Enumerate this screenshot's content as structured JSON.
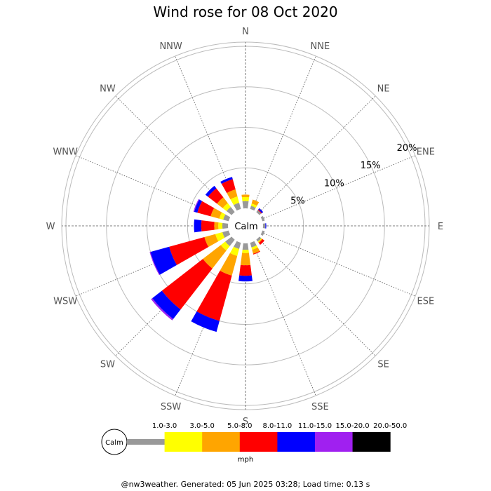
{
  "title": "Wind rose for 08 Oct 2020",
  "footer": "@nw3weather. Generated: 05 Jun 2025 03:28; Load time: 0.13 s",
  "calm_label": "Calm",
  "unit_label": "mph",
  "chart_data": {
    "type": "wind-rose",
    "title": "Wind rose for 08 Oct 2020",
    "directions": [
      "N",
      "NNE",
      "NE",
      "ENE",
      "E",
      "ESE",
      "SE",
      "SSE",
      "S",
      "SSW",
      "SW",
      "WSW",
      "W",
      "WNW",
      "NW",
      "NNW"
    ],
    "rings": [
      5,
      10,
      15,
      20
    ],
    "ring_labels": [
      "5%",
      "10%",
      "15%",
      "20%"
    ],
    "speed_bins": [
      {
        "label": "1.0-3.0",
        "color": "#999999"
      },
      {
        "label": "3.0-5.0",
        "color": "#ffff00"
      },
      {
        "label": "5.0-8.0",
        "color": "#ffa500"
      },
      {
        "label": "8.0-11.0",
        "color": "#ff0000"
      },
      {
        "label": "11.0-15.0",
        "color": "#0000ff"
      },
      {
        "label": "15.0-20.0",
        "color": "#a020f0"
      },
      {
        "label": "20.0-50.0",
        "color": "#000000"
      }
    ],
    "cumulative_percent": {
      "N": [
        0.9,
        1.4,
        1.7,
        1.7,
        1.7,
        1.7,
        1.7
      ],
      "NNE": [
        0.4,
        0.7,
        1.2,
        1.2,
        1.2,
        1.2,
        1.2
      ],
      "NE": [
        0.3,
        0.3,
        0.3,
        0.4,
        0.6,
        0.6,
        0.6
      ],
      "ENE": [
        0.3,
        0.3,
        0.3,
        0.3,
        0.3,
        0.3,
        0.3
      ],
      "E": [
        0.3,
        0.3,
        0.3,
        0.3,
        0.4,
        0.4,
        0.4
      ],
      "ESE": [
        0.3,
        0.3,
        0.3,
        0.3,
        0.3,
        0.3,
        0.3
      ],
      "SE": [
        0.3,
        0.4,
        0.5,
        0.8,
        0.8,
        0.8,
        0.8
      ],
      "SSE": [
        0.6,
        0.9,
        1.4,
        1.5,
        1.5,
        1.5,
        1.5
      ],
      "S": [
        0.8,
        1.2,
        2.7,
        4.0,
        4.7,
        4.7,
        4.7
      ],
      "SSW": [
        0.8,
        1.7,
        4.2,
        10.0,
        11.4,
        11.4,
        11.4
      ],
      "SW": [
        1.0,
        1.7,
        4.5,
        10.9,
        12.4,
        12.6,
        12.6
      ],
      "WSW": [
        0.8,
        1.7,
        3.1,
        7.6,
        10.0,
        10.1,
        10.1
      ],
      "W": [
        0.7,
        1.2,
        1.7,
        3.3,
        4.2,
        4.2,
        4.2
      ],
      "WNW": [
        0.7,
        1.2,
        2.3,
        4.0,
        4.4,
        4.5,
        4.5
      ],
      "NW": [
        0.8,
        1.4,
        2.3,
        3.7,
        4.1,
        4.1,
        4.1
      ],
      "NNW": [
        0.8,
        1.6,
        2.5,
        3.8,
        4.1,
        4.1,
        4.1
      ]
    }
  }
}
